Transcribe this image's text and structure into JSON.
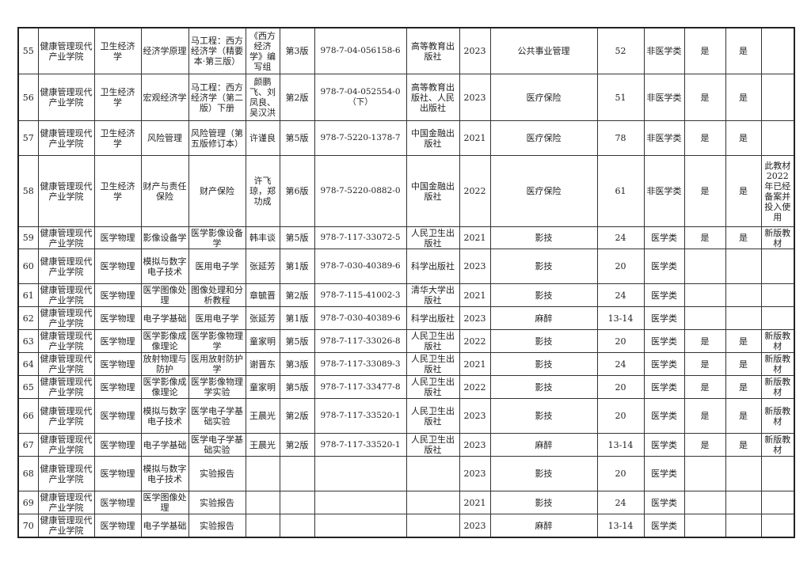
{
  "rows": [
    {
      "no": "55",
      "college": "健康管理现代产业学院",
      "dept": "卫生经济学",
      "course": "经济学原理",
      "textbook": "马工程：西方经济学（精要本·第三版）",
      "author": "《西方经济学》编写组",
      "edition": "第3版",
      "isbn": "978-7-04-056158-6",
      "publisher": "高等教育出版社",
      "year": "2023",
      "major": "公共事业管理",
      "hours": "52",
      "category": "非医学类",
      "c1": "是",
      "c2": "是",
      "note": ""
    },
    {
      "no": "56",
      "college": "健康管理现代产业学院",
      "dept": "卫生经济学",
      "course": "宏观经济学",
      "textbook": "马工程：西方经济学（第二版）下册",
      "author": "颜鹏飞、刘凤良、吴汉洪",
      "edition": "第2版",
      "isbn": "978-7-04-052554-0（下）",
      "publisher": "高等教育出版社、人民出版社",
      "year": "2023",
      "major": "医疗保险",
      "hours": "51",
      "category": "非医学类",
      "c1": "是",
      "c2": "是",
      "note": ""
    },
    {
      "no": "57",
      "college": "健康管理现代产业学院",
      "dept": "卫生经济学",
      "course": "风险管理",
      "textbook": "风险管理（第五版修订本）",
      "author": "许谨良",
      "edition": "第5版",
      "isbn": "978-7-5220-1378-7",
      "publisher": "中国金融出版社",
      "year": "2021",
      "major": "医疗保险",
      "hours": "78",
      "category": "非医学类",
      "c1": "是",
      "c2": "是",
      "note": ""
    },
    {
      "no": "58",
      "college": "健康管理现代产业学院",
      "dept": "卫生经济学",
      "course": "财产与责任保险",
      "textbook": "财产保险",
      "author": "许飞琼，郑功成",
      "edition": "第6版",
      "isbn": "978-7-5220-0882-0",
      "publisher": "中国金融出版社",
      "year": "2022",
      "major": "医疗保险",
      "hours": "61",
      "category": "非医学类",
      "c1": "是",
      "c2": "是",
      "note": "此教材2022年已经备案并投入使用"
    },
    {
      "no": "59",
      "college": "健康管理现代产业学院",
      "dept": "医学物理",
      "course": "影像设备学",
      "textbook": "医学影像设备学",
      "author": "韩丰谈",
      "edition": "第5版",
      "isbn": "978-7-117-33072-5",
      "publisher": "人民卫生出版社",
      "year": "2021",
      "major": "影技",
      "hours": "24",
      "category": "医学类",
      "c1": "是",
      "c2": "是",
      "note": "新版教材"
    },
    {
      "no": "60",
      "college": "健康管理现代产业学院",
      "dept": "医学物理",
      "course": "模拟与数字电子技术",
      "textbook": "医用电子学",
      "author": "张延芳",
      "edition": "第1版",
      "isbn": "978-7-030-40389-6",
      "publisher": "科学出版社",
      "year": "2023",
      "major": "影技",
      "hours": "20",
      "category": "医学类",
      "c1": "",
      "c2": "",
      "note": ""
    },
    {
      "no": "61",
      "college": "健康管理现代产业学院",
      "dept": "医学物理",
      "course": "医学图像处理",
      "textbook": "图像处理和分析教程",
      "author": "章毓晋",
      "edition": "第2版",
      "isbn": "978-7-115-41002-3",
      "publisher": "清华大学出版社",
      "year": "2021",
      "major": "影技",
      "hours": "24",
      "category": "医学类",
      "c1": "",
      "c2": "",
      "note": ""
    },
    {
      "no": "62",
      "college": "健康管理现代产业学院",
      "dept": "医学物理",
      "course": "电子学基础",
      "textbook": "医用电子学",
      "author": "张延芳",
      "edition": "第1版",
      "isbn": "978-7-030-40389-6",
      "publisher": "科学出版社",
      "year": "2023",
      "major": "麻醉",
      "hours": "13-14",
      "category": "医学类",
      "c1": "",
      "c2": "",
      "note": ""
    },
    {
      "no": "63",
      "college": "健康管理现代产业学院",
      "dept": "医学物理",
      "course": "医学影像成像理论",
      "textbook": "医学影像物理学",
      "author": "童家明",
      "edition": "第5版",
      "isbn": "978-7-117-33026-8",
      "publisher": "人民卫生出版社",
      "year": "2022",
      "major": "影技",
      "hours": "20",
      "category": "医学类",
      "c1": "是",
      "c2": "是",
      "note": "新版教材"
    },
    {
      "no": "64",
      "college": "健康管理现代产业学院",
      "dept": "医学物理",
      "course": "放射物理与防护",
      "textbook": "医用放射防护学",
      "author": "谢晋东",
      "edition": "第3版",
      "isbn": "978-7-117-33089-3",
      "publisher": "人民卫生出版社",
      "year": "2021",
      "major": "影技",
      "hours": "24",
      "category": "医学类",
      "c1": "是",
      "c2": "是",
      "note": "新版教材"
    },
    {
      "no": "65",
      "college": "健康管理现代产业学院",
      "dept": "医学物理",
      "course": "医学影像成像理论",
      "textbook": "医学影像物理学实验",
      "author": "童家明",
      "edition": "第5版",
      "isbn": "978-7-117-33477-8",
      "publisher": "人民卫生出版社",
      "year": "2022",
      "major": "影技",
      "hours": "20",
      "category": "医学类",
      "c1": "是",
      "c2": "是",
      "note": "新版教材"
    },
    {
      "no": "66",
      "college": "健康管理现代产业学院",
      "dept": "医学物理",
      "course": "模拟与数字电子技术",
      "textbook": "医学电子学基础实验",
      "author": "王晨光",
      "edition": "第2版",
      "isbn": "978-7-117-33520-1",
      "publisher": "人民卫生出版社",
      "year": "2023",
      "major": "影技",
      "hours": "20",
      "category": "医学类",
      "c1": "是",
      "c2": "是",
      "note": "新版教材"
    },
    {
      "no": "67",
      "college": "健康管理现代产业学院",
      "dept": "医学物理",
      "course": "电子学基础",
      "textbook": "医学电子学基础实验",
      "author": "王晨光",
      "edition": "第2版",
      "isbn": "978-7-117-33520-1",
      "publisher": "人民卫生出版社",
      "year": "2023",
      "major": "麻醉",
      "hours": "13-14",
      "category": "医学类",
      "c1": "是",
      "c2": "是",
      "note": "新版教材"
    },
    {
      "no": "68",
      "college": "健康管理现代产业学院",
      "dept": "医学物理",
      "course": "模拟与数字电子技术",
      "textbook": "实验报告",
      "author": "",
      "edition": "",
      "isbn": "",
      "publisher": "",
      "year": "2023",
      "major": "影技",
      "hours": "20",
      "category": "医学类",
      "c1": "",
      "c2": "",
      "note": ""
    },
    {
      "no": "69",
      "college": "健康管理现代产业学院",
      "dept": "医学物理",
      "course": "医学图像处理",
      "textbook": "实验报告",
      "author": "",
      "edition": "",
      "isbn": "",
      "publisher": "",
      "year": "2021",
      "major": "影技",
      "hours": "24",
      "category": "医学类",
      "c1": "",
      "c2": "",
      "note": ""
    },
    {
      "no": "70",
      "college": "健康管理现代产业学院",
      "dept": "医学物理",
      "course": "电子学基础",
      "textbook": "实验报告",
      "author": "",
      "edition": "",
      "isbn": "",
      "publisher": "",
      "year": "2023",
      "major": "麻醉",
      "hours": "13-14",
      "category": "医学类",
      "c1": "",
      "c2": "",
      "note": ""
    }
  ]
}
